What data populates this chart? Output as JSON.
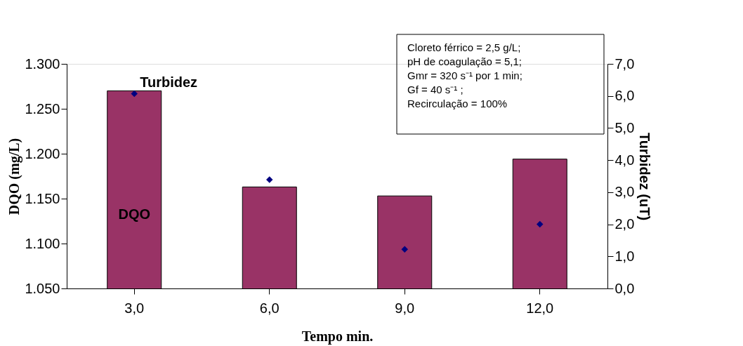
{
  "chart_data": {
    "type": "bar",
    "categories": [
      "3,0",
      "6,0",
      "9,0",
      "12,0"
    ],
    "xlabel": "Tempo min.",
    "ylabel": "DQO (mg/L)",
    "y2label": "Turbidez (uT)",
    "series": [
      {
        "name": "DQO",
        "color": "#993366",
        "values": [
          1270,
          1163,
          1153,
          1194
        ]
      },
      {
        "name": "Turbidez",
        "type": "scatter",
        "axis": "y2",
        "color": "#000080",
        "values": [
          6.07,
          3.39,
          1.22,
          2.0
        ]
      }
    ],
    "ylim": [
      1050,
      1300
    ],
    "yticks": [
      {
        "value": 1050,
        "label": "1.050"
      },
      {
        "value": 1100,
        "label": "1.100"
      },
      {
        "value": 1150,
        "label": "1.150"
      },
      {
        "value": 1200,
        "label": "1.200"
      },
      {
        "value": 1250,
        "label": "1.250"
      },
      {
        "value": 1300,
        "label": "1.300"
      }
    ],
    "y2lim": [
      0,
      7
    ],
    "y2ticks": [
      {
        "value": 0,
        "label": "0,0"
      },
      {
        "value": 1,
        "label": "1,0"
      },
      {
        "value": 2,
        "label": "2,0"
      },
      {
        "value": 3,
        "label": "3,0"
      },
      {
        "value": 4,
        "label": "4,0"
      },
      {
        "value": 5,
        "label": "5,0"
      },
      {
        "value": 6,
        "label": "6,0"
      },
      {
        "value": 7,
        "label": "7,0"
      }
    ],
    "annotations": [
      "Cloreto férrico = 2,5 g/L;",
      "pH de coagulação = 5,1;",
      "Gmr = 320 s⁻¹ por 1 min;",
      "Gf = 40 s⁻¹ ;",
      "Recirculação = 100%"
    ],
    "marker": "diamond",
    "grid": false
  }
}
